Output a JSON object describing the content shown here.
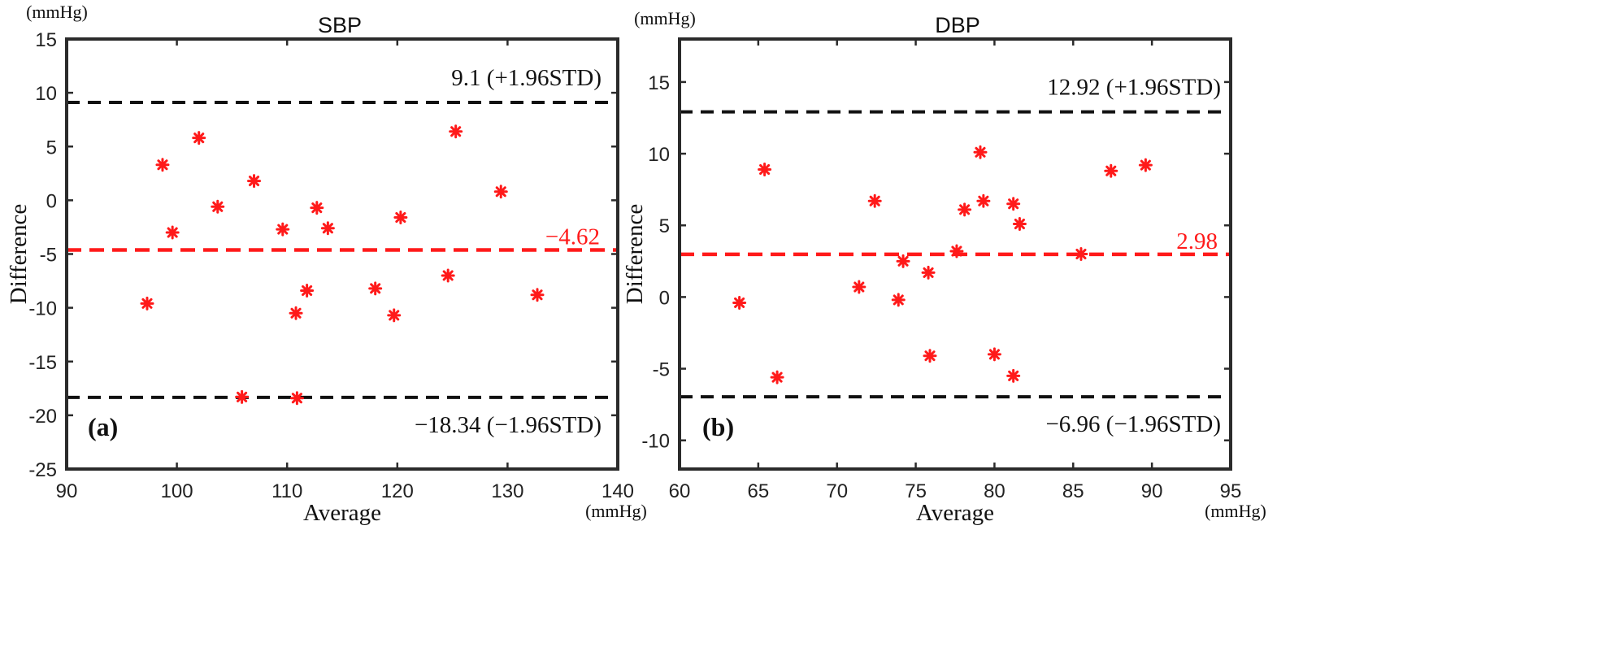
{
  "chart_data": [
    {
      "type": "scatter",
      "panel_label": "(a)",
      "title": "SBP",
      "xlabel": "Average",
      "ylabel": "Difference",
      "y_unit": "(mmHg)",
      "x_unit": "(mmHg)",
      "xlim": [
        90,
        140
      ],
      "ylim": [
        -25,
        15
      ],
      "xticks": [
        90,
        100,
        110,
        120,
        130,
        140
      ],
      "yticks": [
        -25,
        -20,
        -15,
        -10,
        -5,
        0,
        5,
        10,
        15
      ],
      "x_tick_labels": [
        "90",
        "100",
        "110",
        "120",
        "130",
        "140"
      ],
      "y_tick_labels": [
        "-25",
        "-20",
        "-15",
        "-10",
        "-5",
        "0",
        "5",
        "10",
        "15"
      ],
      "mean": -4.62,
      "mean_label": "−4.62",
      "upper_loa": 9.1,
      "upper_loa_label": "9.1 (+1.96STD)",
      "lower_loa": -18.34,
      "lower_loa_label": "−18.34 (−1.96STD)",
      "points": [
        {
          "x": 97.3,
          "y": -9.6
        },
        {
          "x": 98.7,
          "y": 3.3
        },
        {
          "x": 99.6,
          "y": -3.0
        },
        {
          "x": 102.0,
          "y": 5.8
        },
        {
          "x": 103.7,
          "y": -0.6
        },
        {
          "x": 105.9,
          "y": -18.3
        },
        {
          "x": 107.0,
          "y": 1.8
        },
        {
          "x": 109.6,
          "y": -2.7
        },
        {
          "x": 110.8,
          "y": -10.5
        },
        {
          "x": 110.9,
          "y": -18.4
        },
        {
          "x": 111.8,
          "y": -8.4
        },
        {
          "x": 112.7,
          "y": -0.7
        },
        {
          "x": 113.7,
          "y": -2.6
        },
        {
          "x": 118.0,
          "y": -8.2
        },
        {
          "x": 119.7,
          "y": -10.7
        },
        {
          "x": 120.3,
          "y": -1.6
        },
        {
          "x": 124.6,
          "y": -7.0
        },
        {
          "x": 125.3,
          "y": 6.4
        },
        {
          "x": 129.4,
          "y": 0.8
        },
        {
          "x": 132.7,
          "y": -8.8
        }
      ]
    },
    {
      "type": "scatter",
      "panel_label": "(b)",
      "title": "DBP",
      "xlabel": "Average",
      "ylabel": "Difference",
      "y_unit": "(mmHg)",
      "x_unit": "(mmHg)",
      "xlim": [
        60,
        95
      ],
      "ylim": [
        -12,
        18
      ],
      "xticks": [
        60,
        65,
        70,
        75,
        80,
        85,
        90,
        95
      ],
      "yticks": [
        -10,
        -5,
        0,
        5,
        10,
        15
      ],
      "x_tick_labels": [
        "60",
        "65",
        "70",
        "75",
        "80",
        "85",
        "90",
        "95"
      ],
      "y_tick_labels": [
        "-10",
        "-5",
        "0",
        "5",
        "10",
        "15"
      ],
      "mean": 2.98,
      "mean_label": "2.98",
      "upper_loa": 12.92,
      "upper_loa_label": "12.92 (+1.96STD)",
      "lower_loa": -6.96,
      "lower_loa_label": "−6.96 (−1.96STD)",
      "points": [
        {
          "x": 63.8,
          "y": -0.4
        },
        {
          "x": 65.4,
          "y": 8.9
        },
        {
          "x": 66.2,
          "y": -5.6
        },
        {
          "x": 71.4,
          "y": 0.7
        },
        {
          "x": 72.4,
          "y": 6.7
        },
        {
          "x": 73.9,
          "y": -0.2
        },
        {
          "x": 74.2,
          "y": 2.5
        },
        {
          "x": 75.8,
          "y": 1.7
        },
        {
          "x": 75.9,
          "y": -4.1
        },
        {
          "x": 77.6,
          "y": 3.2
        },
        {
          "x": 78.1,
          "y": 6.1
        },
        {
          "x": 79.1,
          "y": 10.1
        },
        {
          "x": 79.3,
          "y": 6.7
        },
        {
          "x": 80.0,
          "y": -4.0
        },
        {
          "x": 81.2,
          "y": 6.5
        },
        {
          "x": 81.2,
          "y": -5.5
        },
        {
          "x": 81.6,
          "y": 5.1
        },
        {
          "x": 85.5,
          "y": 3.0
        },
        {
          "x": 87.4,
          "y": 8.8
        },
        {
          "x": 89.6,
          "y": 9.2
        }
      ]
    }
  ],
  "colors": {
    "points": "#ff1a1a",
    "mean_line": "#ff1a1a",
    "loa_line": "#111111",
    "axes": "#2b2b2b"
  }
}
